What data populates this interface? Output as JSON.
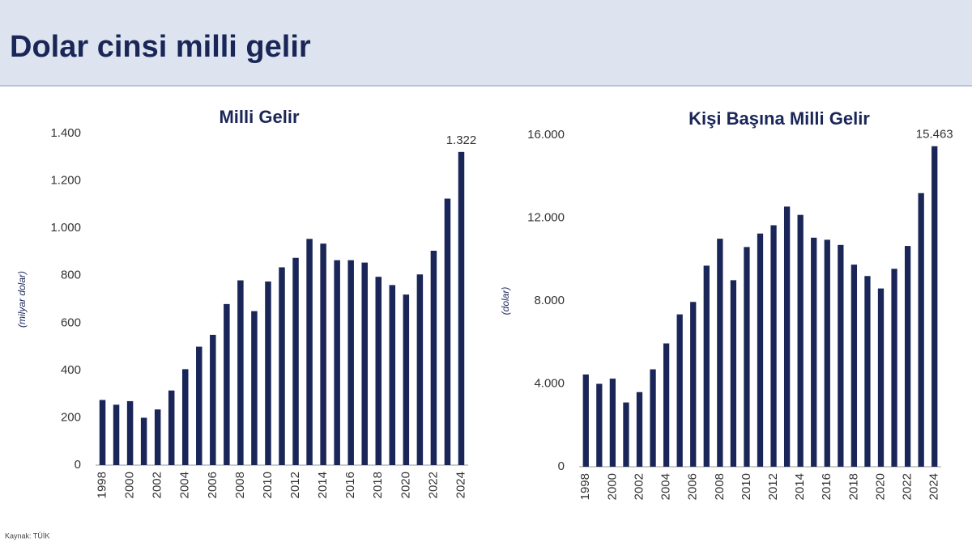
{
  "title": "Dolar cinsi milli gelir",
  "source": "Kaynak: TÜİK",
  "chart_data": [
    {
      "type": "bar",
      "title": "Milli Gelir",
      "y_label": "(milyar dolar)",
      "color": "#1a2657",
      "categories": [
        "1998",
        null,
        "2000",
        null,
        "2002",
        null,
        "2004",
        null,
        "2006",
        null,
        "2008",
        null,
        "2010",
        null,
        "2012",
        null,
        "2014",
        null,
        "2016",
        null,
        "2018",
        null,
        "2020",
        null,
        "2022",
        null,
        "2024"
      ],
      "values": [
        275,
        255,
        270,
        200,
        235,
        315,
        405,
        500,
        550,
        680,
        780,
        650,
        775,
        835,
        875,
        955,
        935,
        865,
        865,
        855,
        795,
        760,
        720,
        805,
        905,
        1125,
        1322
      ],
      "value_labels": [
        null,
        null,
        null,
        null,
        null,
        null,
        null,
        null,
        null,
        null,
        null,
        null,
        null,
        null,
        null,
        null,
        null,
        null,
        null,
        null,
        null,
        null,
        null,
        null,
        null,
        null,
        "1.322"
      ],
      "ylim": [
        0,
        1400
      ],
      "yticks": [
        0,
        200,
        400,
        600,
        800,
        {
          "value": 1000,
          "label": "1.000"
        },
        {
          "value": 1200,
          "label": "1.200"
        },
        {
          "value": 1400,
          "label": "1.400"
        }
      ]
    },
    {
      "type": "bar",
      "title": "Kişi Başına Milli Gelir",
      "y_label": "(dolar)",
      "color": "#1a2657",
      "categories": [
        "1998",
        null,
        "2000",
        null,
        "2002",
        null,
        "2004",
        null,
        "2006",
        null,
        "2008",
        null,
        "2010",
        null,
        "2012",
        null,
        "2014",
        null,
        "2016",
        null,
        "2018",
        null,
        "2020",
        null,
        "2022",
        null,
        "2024"
      ],
      "values": [
        4450,
        4000,
        4250,
        3100,
        3600,
        4700,
        5950,
        7350,
        7950,
        9700,
        11000,
        9000,
        10600,
        11250,
        11650,
        12550,
        12150,
        11050,
        10950,
        10700,
        9750,
        9200,
        8600,
        9550,
        10650,
        13200,
        15463
      ],
      "value_labels": [
        null,
        null,
        null,
        null,
        null,
        null,
        null,
        null,
        null,
        null,
        null,
        null,
        null,
        null,
        null,
        null,
        null,
        null,
        null,
        null,
        null,
        null,
        null,
        null,
        null,
        null,
        "15.463"
      ],
      "ylim": [
        0,
        16000
      ],
      "yticks": [
        0,
        {
          "value": 4000,
          "label": "4.000"
        },
        {
          "value": 8000,
          "label": "8.000"
        },
        {
          "value": 12000,
          "label": "12.000"
        },
        {
          "value": 16000,
          "label": "16.000"
        }
      ]
    }
  ]
}
